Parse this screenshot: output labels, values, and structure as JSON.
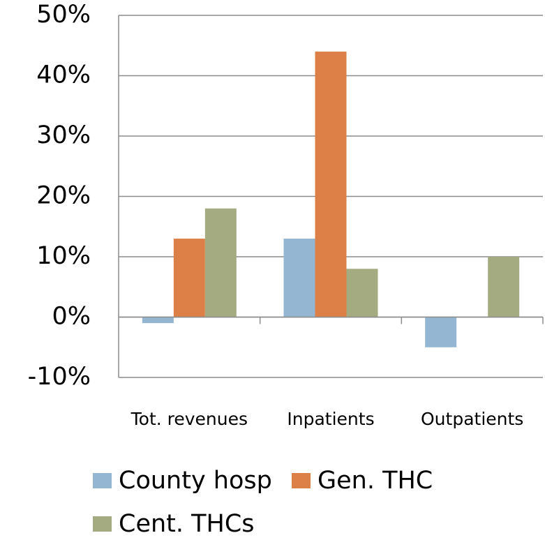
{
  "chart_data": {
    "type": "bar",
    "categories": [
      "Tot. revenues",
      "Inpatients",
      "Outpatients"
    ],
    "series": [
      {
        "name": "County hosp",
        "color": "#94b6d2",
        "values": [
          -1,
          13,
          -5
        ]
      },
      {
        "name": "Gen. THC",
        "color": "#dd8047",
        "values": [
          13,
          44,
          0
        ]
      },
      {
        "name": "Cent. THCs",
        "color": "#a5ab81",
        "values": [
          18,
          8,
          10
        ]
      }
    ],
    "ylim": [
      -10,
      50
    ],
    "yticks": [
      {
        "value": -10,
        "label": "-10%"
      },
      {
        "value": 0,
        "label": "0%"
      },
      {
        "value": 10,
        "label": "10%"
      },
      {
        "value": 20,
        "label": "20%"
      },
      {
        "value": 30,
        "label": "30%"
      },
      {
        "value": 40,
        "label": "40%"
      },
      {
        "value": 50,
        "label": "50%"
      }
    ],
    "grid": true
  }
}
